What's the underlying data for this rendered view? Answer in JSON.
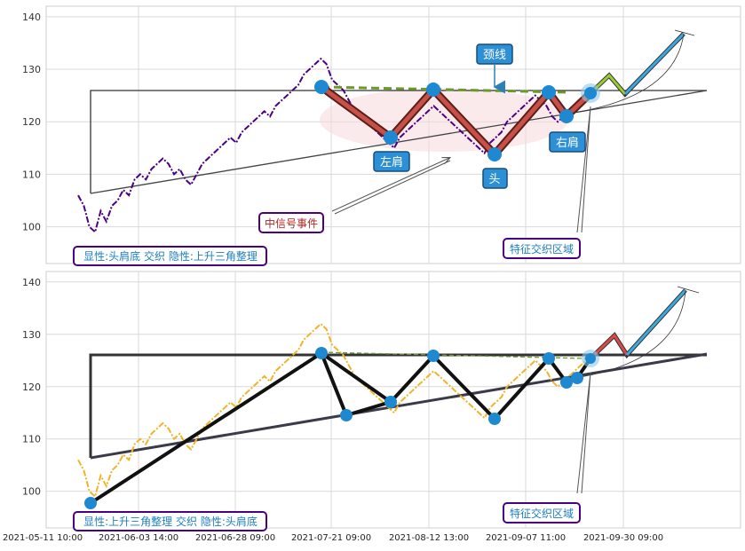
{
  "chart_data": [
    {
      "type": "line",
      "ylim": [
        93,
        142
      ],
      "yticks": [
        100,
        110,
        120,
        130,
        140
      ],
      "grid": true,
      "series": [
        {
          "style": "dash-dot",
          "color": "#4b0082",
          "x_start": "2021-05-11 10:00",
          "approx_values": [
            106,
            104,
            100,
            99,
            103,
            101,
            104,
            105,
            107,
            106,
            109,
            110,
            109,
            111,
            112,
            113,
            112,
            110,
            111,
            109,
            108,
            110,
            112,
            113,
            114,
            115,
            116,
            117,
            116,
            118,
            119,
            120,
            121,
            122,
            121,
            123,
            124,
            125,
            126,
            127,
            129,
            130,
            131,
            132,
            131,
            128,
            127,
            126,
            124,
            122,
            121,
            120,
            119,
            118,
            117,
            116,
            115,
            117,
            118,
            119,
            120,
            121,
            122,
            123,
            122,
            121,
            120,
            119,
            118,
            117,
            116,
            115,
            114,
            116,
            117,
            118,
            120,
            121,
            122,
            123,
            124,
            125,
            124,
            123,
            121,
            120,
            121,
            122,
            123,
            124,
            125
          ]
        }
      ],
      "annotations": {
        "neckline_label": "颈线",
        "left_shoulder_label": "左肩",
        "head_label": "头",
        "right_shoulder_label": "右肩",
        "signal_label": "中信号事件",
        "zone_label": "特征交织区域",
        "pattern_label": "显性:头肩底 交织 隐性:上升三角整理"
      },
      "pattern_points": [
        {
          "label": "neck_start",
          "x": "2021-07-21 09:00",
          "y": 126.5
        },
        {
          "label": "left_shoulder",
          "x": "2021-08-05",
          "y": 117.0
        },
        {
          "label": "neck_mid",
          "x": "2021-08-12 13:00",
          "y": 126.0
        },
        {
          "label": "head",
          "x": "2021-09-01",
          "y": 114.0
        },
        {
          "label": "neck_end",
          "x": "2021-09-07 11:00",
          "y": 125.5
        },
        {
          "label": "right_shoulder",
          "x": "2021-09-14",
          "y": 121.0
        },
        {
          "label": "breakout",
          "x": "2021-09-20",
          "y": 125.3
        }
      ],
      "triangle": {
        "top": 126.0,
        "bottom_start": 106.5,
        "bottom_end": 126.0
      }
    },
    {
      "type": "line",
      "ylim": [
        93,
        142
      ],
      "yticks": [
        100,
        110,
        120,
        130,
        140
      ],
      "grid": true,
      "series": [
        {
          "style": "dash-dot",
          "color": "#f0b429"
        }
      ],
      "annotations": {
        "zone_label": "特征交织区域",
        "pattern_label": "显性:上升三角整理 交织 隐性:头肩底"
      },
      "xticks": [
        "2021-05-11 10:00",
        "2021-06-03 14:00",
        "2021-06-28 09:00",
        "2021-07-21 09:00",
        "2021-08-12 13:00",
        "2021-09-07 11:00",
        "2021-09-30 09:00"
      ]
    }
  ]
}
